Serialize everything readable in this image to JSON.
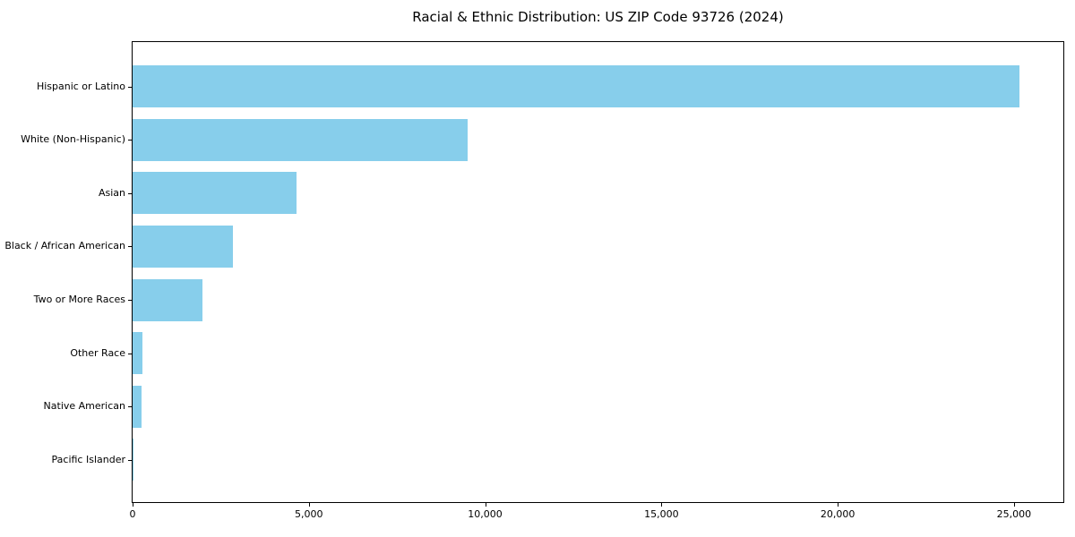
{
  "title": "Racial & Ethnic Distribution: US ZIP Code 93726 (2024)",
  "chart_data": {
    "type": "bar",
    "orientation": "horizontal",
    "title": "Racial & Ethnic Distribution: US ZIP Code 93726 (2024)",
    "xlabel": "",
    "ylabel": "",
    "categories": [
      "Hispanic or Latino",
      "White (Non-Hispanic)",
      "Asian",
      "Black / African American",
      "Two or More Races",
      "Other Race",
      "Native American",
      "Pacific Islander"
    ],
    "values": [
      25150,
      9500,
      4650,
      2850,
      1980,
      280,
      250,
      30
    ],
    "xlim": [
      0,
      26400
    ],
    "x_ticks": [
      0,
      5000,
      10000,
      15000,
      20000,
      25000
    ],
    "x_tick_labels": [
      "0",
      "5,000",
      "10,000",
      "15,000",
      "20,000",
      "25,000"
    ],
    "bar_color": "#87CEEB",
    "spine_color": "#000000",
    "text_color": "#000000",
    "grid": false,
    "legend": false
  }
}
